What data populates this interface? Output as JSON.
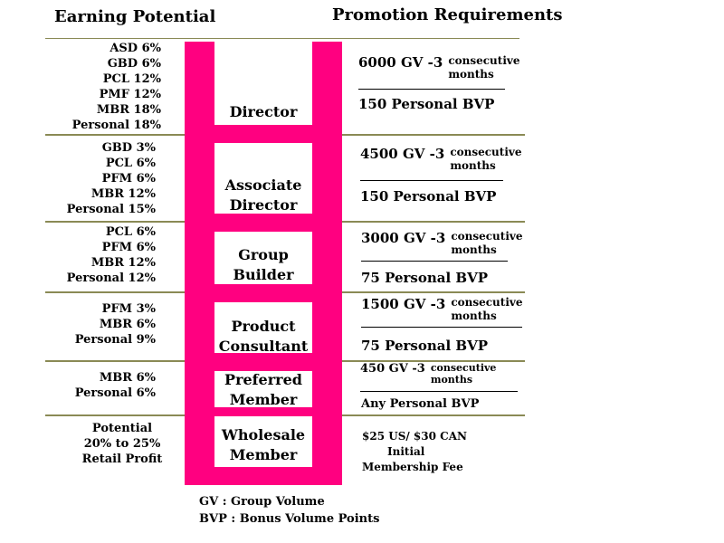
{
  "headers": {
    "earning": "Earning Potential",
    "promotion": "Promotion Requirements"
  },
  "earnings": [
    [
      "ASD  6%",
      "GBD  6%",
      "PCL  12%",
      "PMF  12%",
      "MBR  18%",
      "Personal  18%"
    ],
    [
      "GBD  3%",
      "PCL  6%",
      "PFM  6%",
      "MBR  12%",
      "Personal  15%"
    ],
    [
      "PCL   6%",
      "PFM   6%",
      "MBR  12%",
      "Personal  12%"
    ],
    [
      "PFM  3%",
      "MBR  6%",
      "Personal   9%"
    ],
    [
      "MBR  6%",
      "Personal  6%"
    ],
    [
      "Potential",
      "20% to 25%",
      "Retail Profit"
    ]
  ],
  "ranks": [
    [
      "Director"
    ],
    [
      "Associate",
      "Director"
    ],
    [
      "Group",
      "Builder"
    ],
    [
      "Product",
      "Consultant"
    ],
    [
      "Preferred",
      "Member"
    ],
    [
      "Wholesale",
      "Member"
    ]
  ],
  "requirements": [
    {
      "gv": "6000 GV -3",
      "cons1": "consecutive",
      "cons2": "months",
      "bvp": "150 Personal BVP"
    },
    {
      "gv": "4500 GV -3",
      "cons1": "consecutive",
      "cons2": "months",
      "bvp": "150 Personal BVP"
    },
    {
      "gv": "3000 GV -3",
      "cons1": "consecutive",
      "cons2": "months",
      "bvp": "75 Personal BVP"
    },
    {
      "gv": "1500 GV -3",
      "cons1": "consecutive",
      "cons2": "months",
      "bvp": "75 Personal BVP"
    },
    {
      "gv": "450 GV -3",
      "cons1": "consecutive",
      "cons2": "months",
      "bvp": "Any Personal BVP"
    }
  ],
  "fee": [
    "$25 US/ $30 CAN",
    "Initial",
    "Membership Fee"
  ],
  "legend": [
    "GV   : Group Volume",
    "BVP : Bonus Volume Points"
  ],
  "colors": {
    "ladder": "#ff0080",
    "divider": "#8a8a55"
  }
}
